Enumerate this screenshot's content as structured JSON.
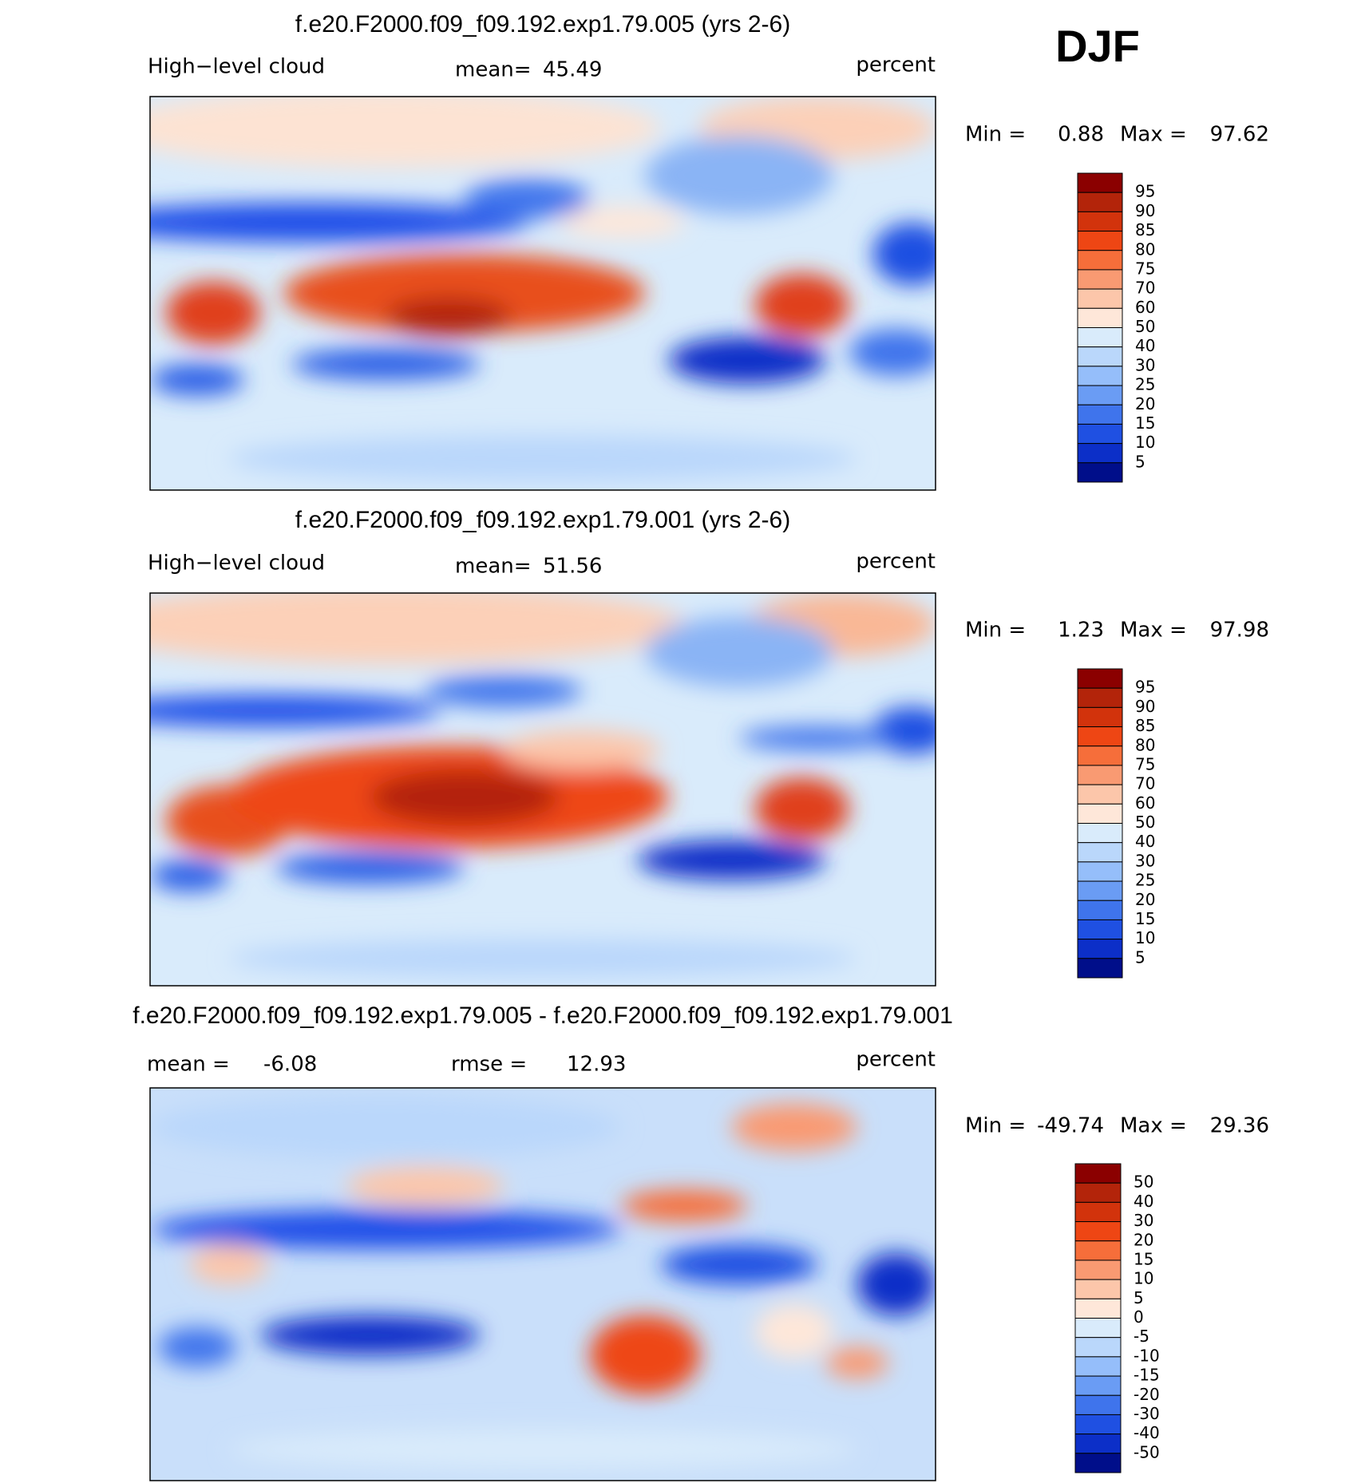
{
  "header": {
    "season": "DJF"
  },
  "panels": [
    {
      "title": "f.e20.F2000.f09_f09.192.exp1.79.005 (yrs 2-6)",
      "variable": "High−level cloud",
      "stats": [
        {
          "label": "mean=",
          "value": 45.49
        }
      ],
      "units": "percent",
      "min_label": "Min =",
      "min": 0.88,
      "max_label": "Max =",
      "max": 97.62,
      "colorbar": {
        "labels": [
          95,
          90,
          85,
          80,
          75,
          70,
          60,
          50,
          40,
          30,
          25,
          20,
          15,
          10,
          5
        ],
        "colors": [
          "#8b0000",
          "#b3240a",
          "#d2330c",
          "#ee4614",
          "#f66e3a",
          "#f99a72",
          "#fcc6aa",
          "#fee7d9",
          "#d9ebfb",
          "#bad7fb",
          "#95befa",
          "#6a9cf4",
          "#3f74ec",
          "#1f50e2",
          "#0c2fc8",
          "#000e8a"
        ]
      }
    },
    {
      "title": "f.e20.F2000.f09_f09.192.exp1.79.001 (yrs 2-6)",
      "variable": "High−level cloud",
      "stats": [
        {
          "label": "mean=",
          "value": 51.56
        }
      ],
      "units": "percent",
      "min_label": "Min =",
      "min": 1.23,
      "max_label": "Max =",
      "max": 97.98,
      "colorbar": {
        "labels": [
          95,
          90,
          85,
          80,
          75,
          70,
          60,
          50,
          40,
          30,
          25,
          20,
          15,
          10,
          5
        ],
        "colors": [
          "#8b0000",
          "#b3240a",
          "#d2330c",
          "#ee4614",
          "#f66e3a",
          "#f99a72",
          "#fcc6aa",
          "#fee7d9",
          "#d9ebfb",
          "#bad7fb",
          "#95befa",
          "#6a9cf4",
          "#3f74ec",
          "#1f50e2",
          "#0c2fc8",
          "#000e8a"
        ]
      }
    },
    {
      "title": "f.e20.F2000.f09_f09.192.exp1.79.005 - f.e20.F2000.f09_f09.192.exp1.79.001",
      "stats": [
        {
          "label": "mean =",
          "value": -6.08
        },
        {
          "label": "rmse =",
          "value": 12.93
        }
      ],
      "units": "percent",
      "min_label": "Min =",
      "min": -49.74,
      "max_label": "Max =",
      "max": 29.36,
      "colorbar": {
        "labels": [
          50,
          40,
          30,
          20,
          15,
          10,
          5,
          0,
          -5,
          -10,
          -15,
          -20,
          -30,
          -40,
          -50
        ],
        "colors": [
          "#8b0000",
          "#b3240a",
          "#d2330c",
          "#ee4614",
          "#f66e3a",
          "#f99a72",
          "#fcc6aa",
          "#fee7d9",
          "#d9ebfb",
          "#bad7fb",
          "#95befa",
          "#6a9cf4",
          "#3f74ec",
          "#1f50e2",
          "#0c2fc8",
          "#000e8a"
        ]
      }
    }
  ]
}
